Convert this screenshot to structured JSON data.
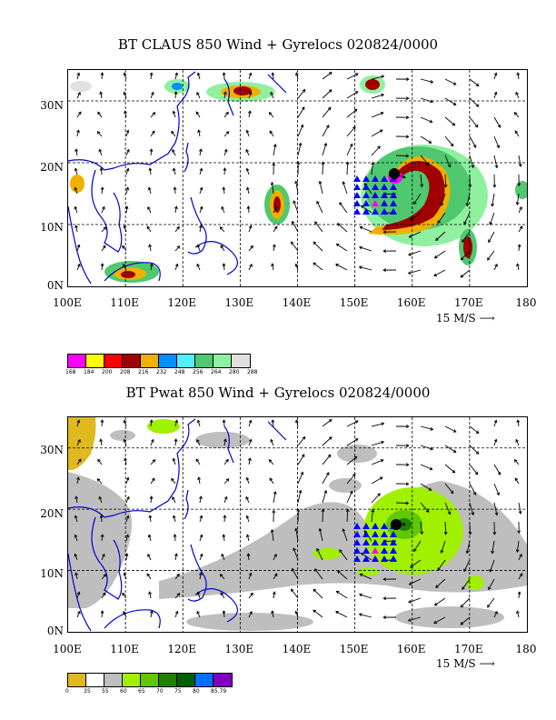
{
  "panel1": {
    "title": "BT CLAUS 850 Wind + Gyrelocs 020824/0000",
    "colorbar_labels": [
      "168",
      "184",
      "200",
      "208",
      "216",
      "232",
      "248",
      "256",
      "264",
      "280",
      "288"
    ],
    "colorbar_colors": [
      "#ff00ff",
      "#ffff00",
      "#ff0000",
      "#a00000",
      "#f0b000",
      "#0090ff",
      "#50f0ff",
      "#50c870",
      "#90f0a0",
      "#e0e0e0"
    ]
  },
  "panel2": {
    "title": "BT Pwat 850 Wind + Gyrelocs 020824/0000",
    "colorbar_labels": [
      "0",
      "35",
      "55",
      "60",
      "65",
      "70",
      "75",
      "80",
      "85.79"
    ],
    "colorbar_colors": [
      "#e0b820",
      "#ffffff",
      "#bebebe",
      "#a0f000",
      "#60c800",
      "#208000",
      "#006000",
      "#0070ff",
      "#8000c0"
    ]
  },
  "lat_labels": [
    "30N",
    "20N",
    "10N",
    "0N"
  ],
  "lon_labels": [
    "100E",
    "110E",
    "120E",
    "130E",
    "140E",
    "150E",
    "160E",
    "170E",
    "180"
  ],
  "scale_label": "15 M/S"
}
